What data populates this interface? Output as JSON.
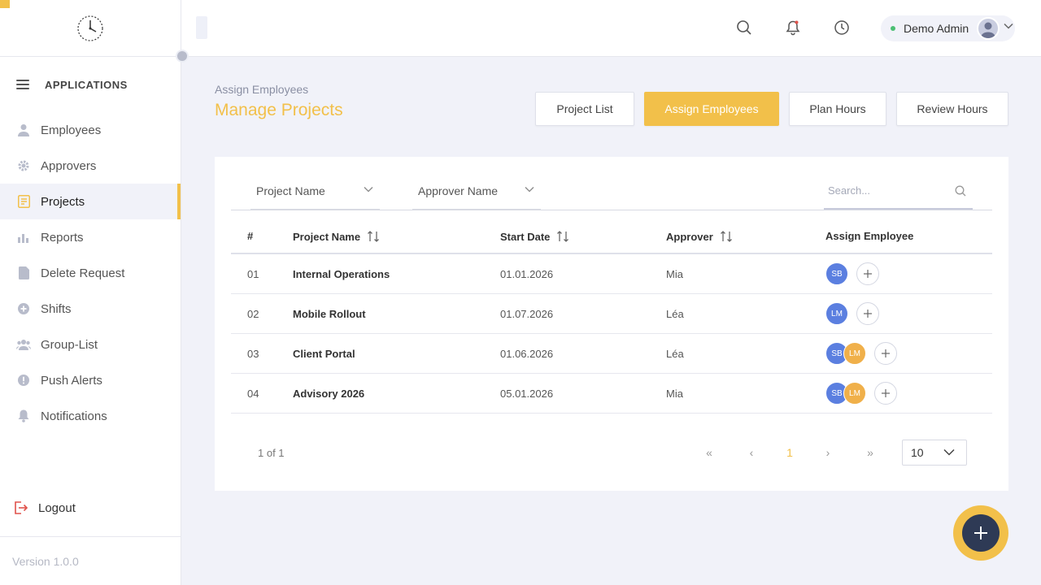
{
  "sidebar": {
    "apps_label": "APPLICATIONS",
    "items": [
      {
        "label": "Employees",
        "icon": "user-icon"
      },
      {
        "label": "Approvers",
        "icon": "gear-icon"
      },
      {
        "label": "Projects",
        "icon": "document-icon"
      },
      {
        "label": "Reports",
        "icon": "chart-icon"
      },
      {
        "label": "Delete Request",
        "icon": "file-icon"
      },
      {
        "label": "Shifts",
        "icon": "plus-circle-icon"
      },
      {
        "label": "Group-List",
        "icon": "group-icon"
      },
      {
        "label": "Push Alerts",
        "icon": "alert-icon"
      },
      {
        "label": "Notifications",
        "icon": "bell-icon"
      }
    ],
    "active_item": "Projects",
    "logout_label": "Logout",
    "version": "Version 1.0.0"
  },
  "topbar": {
    "user_name": "Demo Admin"
  },
  "header": {
    "breadcrumb": "Assign Employees",
    "title": "Manage Projects",
    "tabs": [
      "Project List",
      "Assign Employees",
      "Plan Hours",
      "Review Hours"
    ],
    "active_tab": "Assign Employees"
  },
  "filters": {
    "project_name": "Project Name",
    "approver_name": "Approver Name",
    "search_placeholder": "Search..."
  },
  "table": {
    "headers": [
      "#",
      "Project Name",
      "Start Date",
      "Approver",
      "Assign Employee"
    ],
    "rows": [
      {
        "num": "01",
        "name": "Internal Operations",
        "start": "01.01.2026",
        "approver": "Mia",
        "employees": [
          "SB"
        ]
      },
      {
        "num": "02",
        "name": "Mobile Rollout",
        "start": "01.07.2026",
        "approver": "Léa",
        "employees": [
          "LM"
        ]
      },
      {
        "num": "03",
        "name": "Client Portal",
        "start": "01.06.2026",
        "approver": "Léa",
        "employees": [
          "SB",
          "LM"
        ]
      },
      {
        "num": "04",
        "name": "Advisory 2026",
        "start": "05.01.2026",
        "approver": "Mia",
        "employees": [
          "SB",
          "LM"
        ]
      }
    ]
  },
  "pagination": {
    "info": "1 of 1",
    "current_page": "1",
    "first": "«",
    "prev": "‹",
    "next": "›",
    "last": "»",
    "page_size": "10"
  },
  "colors": {
    "accent": "#f2c04a",
    "avatar_blue": "#5b7fe0",
    "avatar_orange": "#f0b04a",
    "fab_inner": "#2e3a55"
  }
}
